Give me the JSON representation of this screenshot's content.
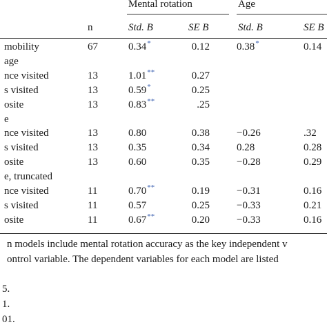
{
  "header": {
    "group1": "Mental rotation",
    "group2": "Age",
    "n_label": "n",
    "std_b_1": "Std. B",
    "se_b_1": "SE B",
    "std_b_2": "Std. B",
    "se_b_2": "SE B"
  },
  "rows": [
    {
      "label": "mobility",
      "n": "67",
      "b1": "0.34",
      "s1": "*",
      "se1": "0.12",
      "b2": "0.38",
      "s2": "*",
      "se2": "0.14"
    },
    {
      "label": "age",
      "n": "",
      "b1": "",
      "s1": "",
      "se1": "",
      "b2": "",
      "s2": "",
      "se2": ""
    },
    {
      "label": "nce visited",
      "n": "13",
      "b1": "1.01",
      "s1": "**",
      "se1": "0.27",
      "b2": "",
      "s2": "",
      "se2": ""
    },
    {
      "label": "s visited",
      "n": "13",
      "b1": "0.59",
      "s1": "*",
      "se1": "0.25",
      "b2": "",
      "s2": "",
      "se2": ""
    },
    {
      "label": "osite",
      "n": "13",
      "b1": "0.83",
      "s1": "**",
      "se1": ".25",
      "b2": "",
      "s2": "",
      "se2": ""
    },
    {
      "label": "e",
      "n": "",
      "b1": "",
      "s1": "",
      "se1": "",
      "b2": "",
      "s2": "",
      "se2": ""
    },
    {
      "label": "nce visited",
      "n": "13",
      "b1": "0.80",
      "s1": "",
      "se1": "0.38",
      "b2": "−0.26",
      "s2": "",
      "se2": ".32"
    },
    {
      "label": "s visited",
      "n": "13",
      "b1": "0.35",
      "s1": "",
      "se1": "0.34",
      "b2": "0.28",
      "s2": "",
      "se2": "0.28"
    },
    {
      "label": "osite",
      "n": "13",
      "b1": "0.60",
      "s1": "",
      "se1": "0.35",
      "b2": "−0.28",
      "s2": "",
      "se2": "0.29"
    },
    {
      "label": "e, truncated",
      "n": "",
      "b1": "",
      "s1": "",
      "se1": "",
      "b2": "",
      "s2": "",
      "se2": ""
    },
    {
      "label": "nce visited",
      "n": "11",
      "b1": "0.70",
      "s1": "**",
      "se1": "0.19",
      "b2": "−0.31",
      "s2": "",
      "se2": "0.16"
    },
    {
      "label": "s visited",
      "n": "11",
      "b1": "0.57",
      "s1": "",
      "se1": "0.25",
      "b2": "−0.33",
      "s2": "",
      "se2": "0.21"
    },
    {
      "label": "osite",
      "n": "11",
      "b1": "0.67",
      "s1": "**",
      "se1": "0.20",
      "b2": "−0.33",
      "s2": "",
      "se2": "0.16"
    }
  ],
  "footnotes": {
    "line1": "n models include mental rotation accuracy as the key independent v",
    "line2": "ontrol variable. The dependent variables for each model are listed",
    "sig1": "5.",
    "sig2": "1.",
    "sig3": "01."
  }
}
